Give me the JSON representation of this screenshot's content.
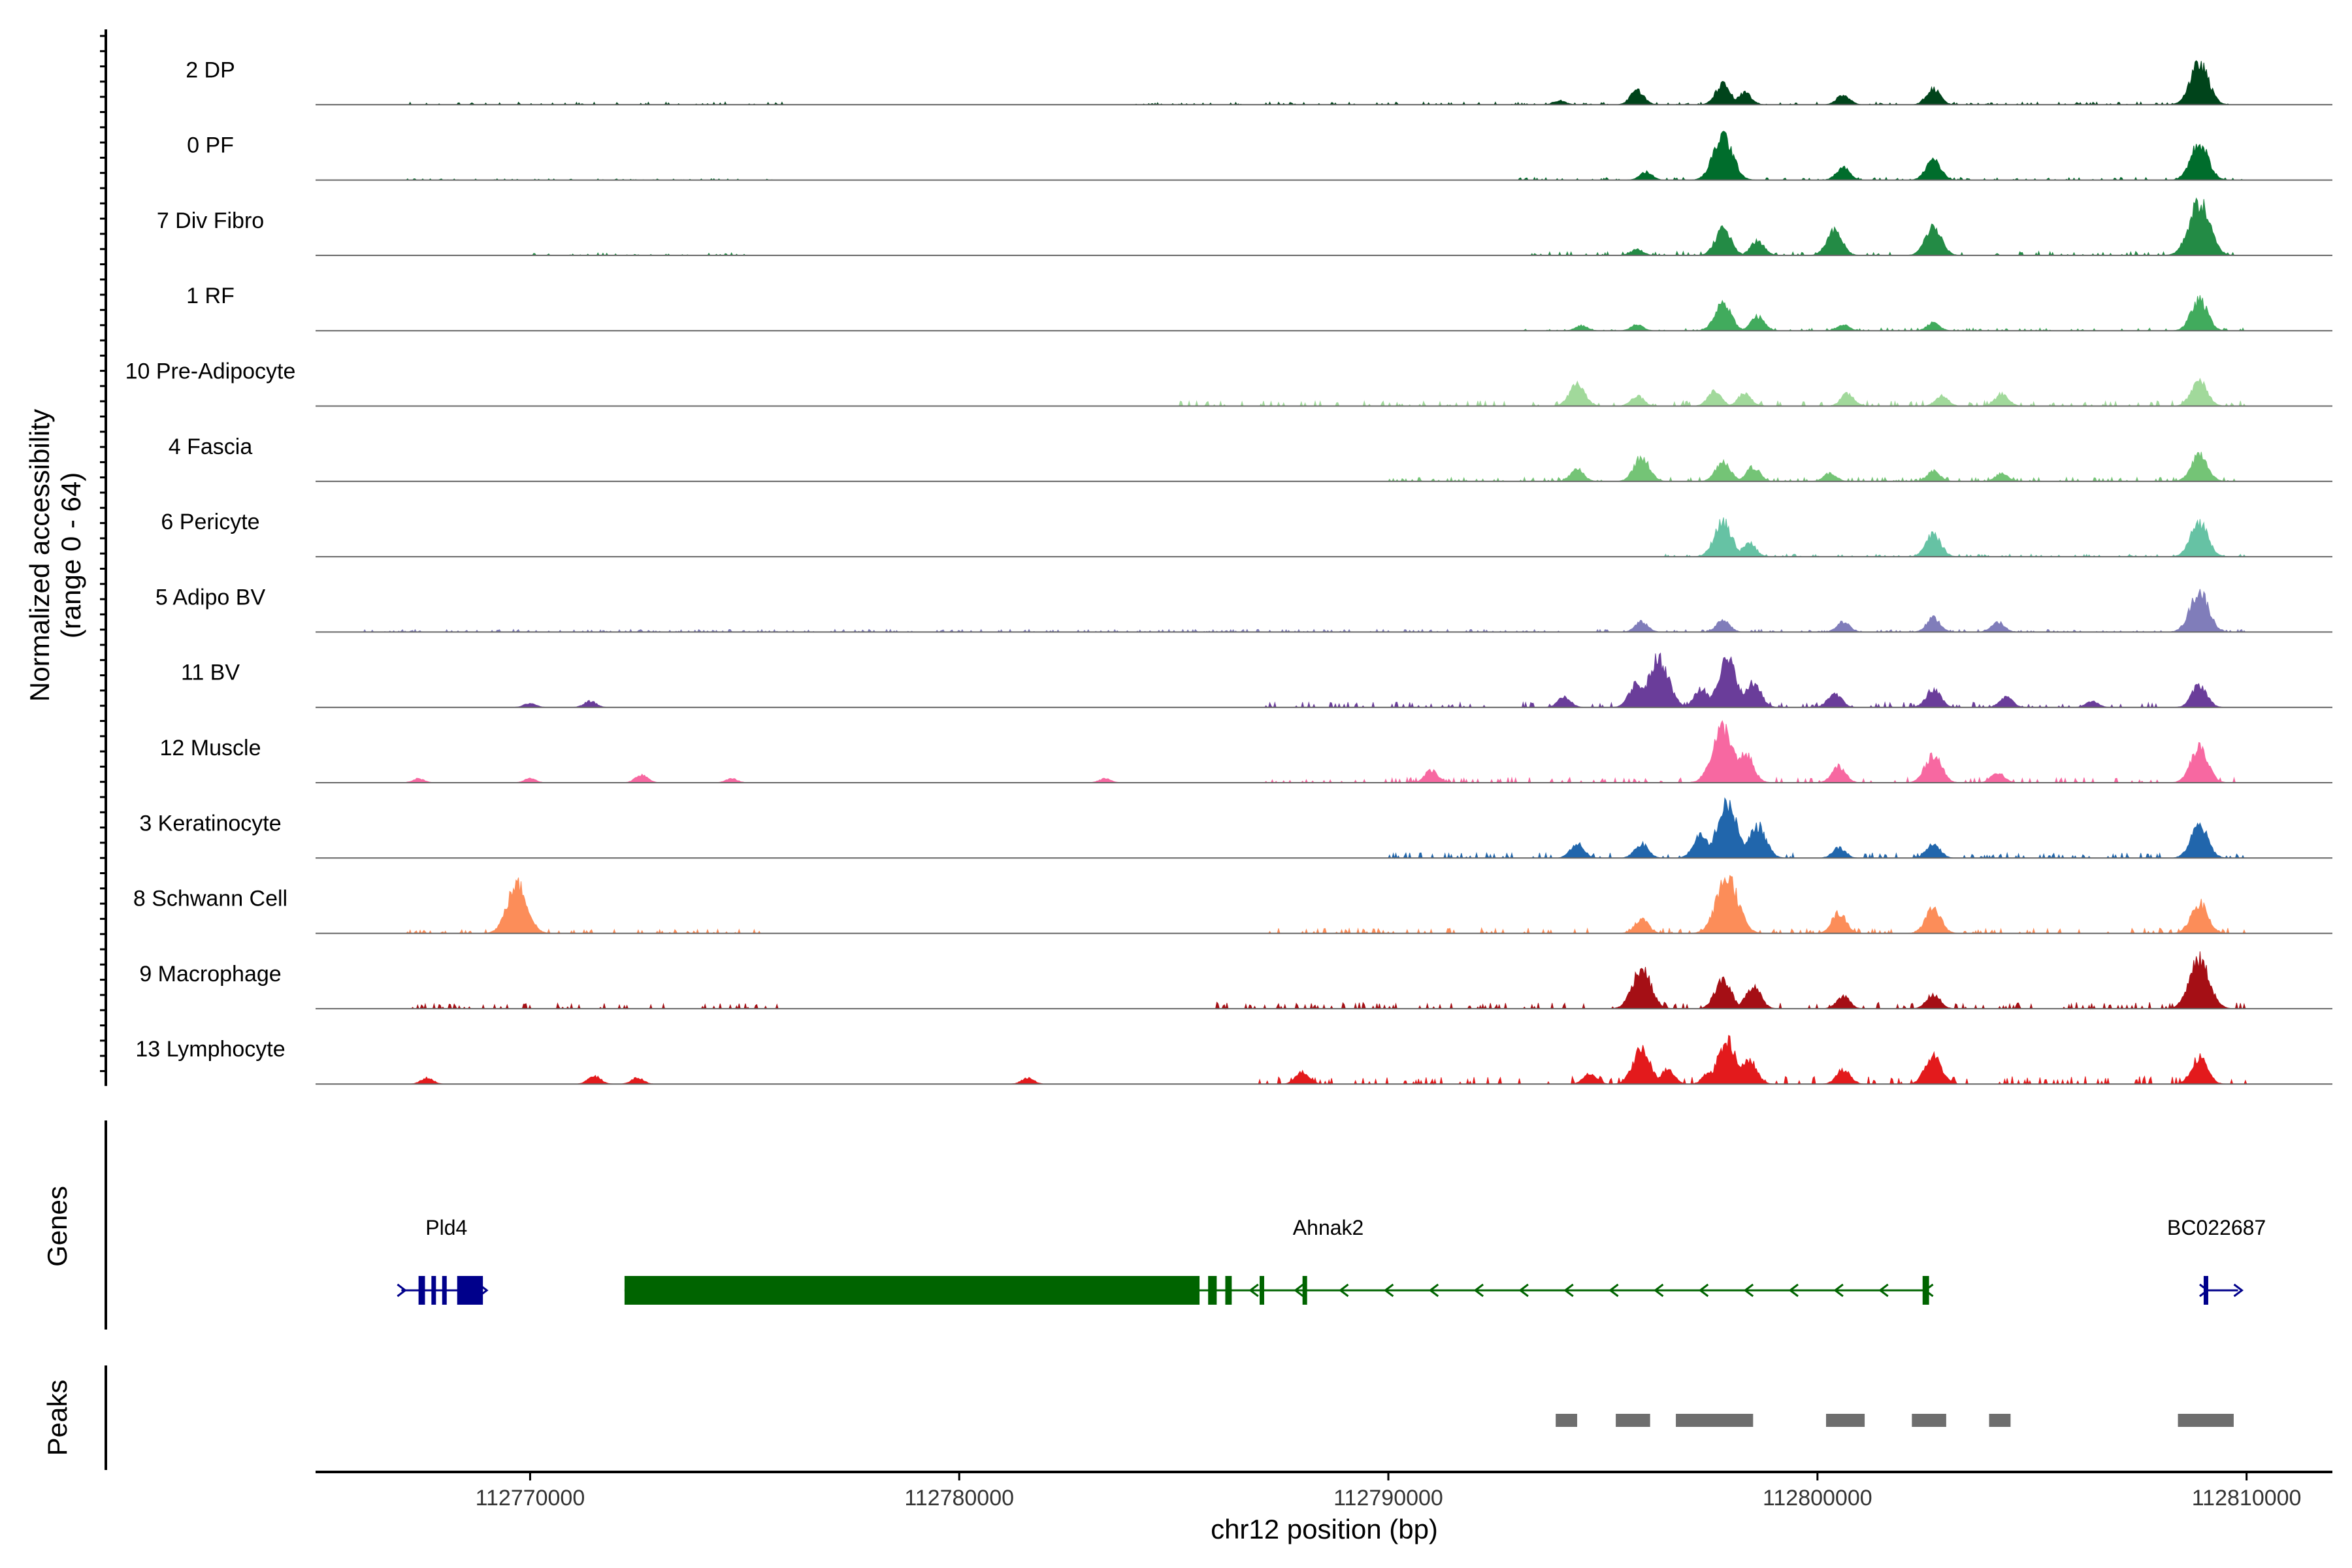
{
  "chart_data": {
    "type": "area",
    "title": "",
    "ylabel": [
      "Normalized accessibility",
      "(range 0 - 64)"
    ],
    "ylim": [
      0,
      64
    ],
    "xlabel": "chr12 position (bp)",
    "xlim": [
      112765000,
      112812000
    ],
    "x_ticks": [
      112770000,
      112780000,
      112790000,
      112800000,
      112810000
    ],
    "x_tick_labels": [
      "112770000",
      "112780000",
      "112790000",
      "112800000",
      "112810000"
    ],
    "panel_labels": {
      "genes": "Genes",
      "peaks": "Peaks"
    },
    "tracks": [
      {
        "name": "2 DP",
        "color": "#00441b",
        "peaks": [
          [
            112794000,
            4
          ],
          [
            112795800,
            14
          ],
          [
            112797800,
            20
          ],
          [
            112798300,
            12
          ],
          [
            112800600,
            10
          ],
          [
            112802700,
            16
          ],
          [
            112808900,
            40
          ]
        ],
        "noise": [
          [
            112767000,
            112776000,
            2
          ],
          [
            112784000,
            112810000,
            2
          ]
        ]
      },
      {
        "name": "0 PF",
        "color": "#006d2c",
        "peaks": [
          [
            112796000,
            8
          ],
          [
            112797800,
            44
          ],
          [
            112800600,
            12
          ],
          [
            112802700,
            20
          ],
          [
            112808900,
            36
          ]
        ],
        "noise": [
          [
            112767000,
            112776000,
            1
          ],
          [
            112793000,
            112810000,
            2
          ]
        ]
      },
      {
        "name": "7 Div Fibro",
        "color": "#238b45",
        "peaks": [
          [
            112795800,
            6
          ],
          [
            112797800,
            26
          ],
          [
            112798600,
            14
          ],
          [
            112800400,
            24
          ],
          [
            112802700,
            28
          ],
          [
            112808900,
            52
          ]
        ],
        "noise": [
          [
            112770000,
            112775000,
            2
          ],
          [
            112793000,
            112810000,
            3
          ]
        ]
      },
      {
        "name": "1 RF",
        "color": "#41ab5d",
        "peaks": [
          [
            112794500,
            5
          ],
          [
            112795800,
            6
          ],
          [
            112797800,
            28
          ],
          [
            112798600,
            14
          ],
          [
            112800600,
            6
          ],
          [
            112802700,
            8
          ],
          [
            112808900,
            30
          ]
        ],
        "noise": [
          [
            112793000,
            112810000,
            2
          ]
        ]
      },
      {
        "name": "10 Pre-Adipocyte",
        "color": "#a1d99b",
        "peaks": [
          [
            112794400,
            22
          ],
          [
            112795800,
            10
          ],
          [
            112797600,
            14
          ],
          [
            112798300,
            12
          ],
          [
            112800700,
            12
          ],
          [
            112802900,
            10
          ],
          [
            112804300,
            12
          ],
          [
            112808900,
            26
          ]
        ],
        "noise": [
          [
            112785000,
            112810000,
            4
          ]
        ]
      },
      {
        "name": "4 Fascia",
        "color": "#74c476",
        "peaks": [
          [
            112794400,
            12
          ],
          [
            112795900,
            24
          ],
          [
            112797800,
            20
          ],
          [
            112798500,
            14
          ],
          [
            112800300,
            8
          ],
          [
            112802700,
            10
          ],
          [
            112804300,
            8
          ],
          [
            112808900,
            28
          ]
        ],
        "noise": [
          [
            112790000,
            112810000,
            3
          ]
        ]
      },
      {
        "name": "6 Pericyte",
        "color": "#66c2a4",
        "peaks": [
          [
            112797800,
            34
          ],
          [
            112798400,
            14
          ],
          [
            112802700,
            22
          ],
          [
            112808900,
            34
          ]
        ],
        "noise": [
          [
            112796000,
            112810000,
            2
          ]
        ]
      },
      {
        "name": "5 Adipo BV",
        "color": "#807dba",
        "peaks": [
          [
            112795900,
            10
          ],
          [
            112797800,
            12
          ],
          [
            112800600,
            10
          ],
          [
            112802700,
            14
          ],
          [
            112804200,
            10
          ],
          [
            112808900,
            40
          ]
        ],
        "noise": [
          [
            112766000,
            112810000,
            2
          ]
        ]
      },
      {
        "name": "11 BV",
        "color": "#6a3d9a",
        "peaks": [
          [
            112770000,
            4
          ],
          [
            112771400,
            6
          ],
          [
            112794100,
            10
          ],
          [
            112795800,
            24
          ],
          [
            112796300,
            48
          ],
          [
            112797300,
            18
          ],
          [
            112797900,
            46
          ],
          [
            112798500,
            24
          ],
          [
            112800400,
            14
          ],
          [
            112802700,
            18
          ],
          [
            112804400,
            10
          ],
          [
            112806400,
            6
          ],
          [
            112808900,
            22
          ]
        ],
        "noise": [
          [
            112787000,
            112808000,
            4
          ]
        ]
      },
      {
        "name": "12 Muscle",
        "color": "#f768a1",
        "peaks": [
          [
            112767400,
            4
          ],
          [
            112770000,
            4
          ],
          [
            112772600,
            8
          ],
          [
            112774700,
            4
          ],
          [
            112783400,
            4
          ],
          [
            112791000,
            12
          ],
          [
            112797800,
            54
          ],
          [
            112798300,
            30
          ],
          [
            112800500,
            16
          ],
          [
            112802700,
            28
          ],
          [
            112804200,
            10
          ],
          [
            112808900,
            34
          ]
        ],
        "noise": [
          [
            112787000,
            112810000,
            4
          ]
        ]
      },
      {
        "name": "3 Keratinocyte",
        "color": "#2166ac",
        "peaks": [
          [
            112794400,
            14
          ],
          [
            112795900,
            14
          ],
          [
            112797300,
            24
          ],
          [
            112797900,
            52
          ],
          [
            112798600,
            32
          ],
          [
            112800500,
            10
          ],
          [
            112802700,
            14
          ],
          [
            112808900,
            32
          ]
        ],
        "noise": [
          [
            112790000,
            112810000,
            4
          ]
        ]
      },
      {
        "name": "8 Schwann Cell",
        "color": "#fc8d59",
        "peaks": [
          [
            112769700,
            48
          ],
          [
            112795900,
            14
          ],
          [
            112797900,
            56
          ],
          [
            112800500,
            20
          ],
          [
            112802700,
            24
          ],
          [
            112808900,
            30
          ]
        ],
        "noise": [
          [
            112767000,
            112776000,
            3
          ],
          [
            112787000,
            112810000,
            4
          ]
        ]
      },
      {
        "name": "9 Macrophage",
        "color": "#a50f15",
        "peaks": [
          [
            112795900,
            40
          ],
          [
            112797800,
            28
          ],
          [
            112798500,
            22
          ],
          [
            112800600,
            12
          ],
          [
            112802700,
            14
          ],
          [
            112808900,
            48
          ]
        ],
        "noise": [
          [
            112767000,
            112776000,
            4
          ],
          [
            112786000,
            112810000,
            5
          ]
        ]
      },
      {
        "name": "13 Lymphocyte",
        "color": "#e31a1c",
        "peaks": [
          [
            112767600,
            6
          ],
          [
            112771500,
            8
          ],
          [
            112772500,
            6
          ],
          [
            112781600,
            6
          ],
          [
            112788000,
            12
          ],
          [
            112794700,
            10
          ],
          [
            112795900,
            34
          ],
          [
            112796500,
            14
          ],
          [
            112797500,
            12
          ],
          [
            112797900,
            42
          ],
          [
            112798400,
            24
          ],
          [
            112800600,
            14
          ],
          [
            112802700,
            28
          ],
          [
            112808900,
            26
          ]
        ],
        "noise": [
          [
            112787000,
            112810000,
            6
          ]
        ]
      }
    ],
    "genes": [
      {
        "name": "Pld4",
        "color": "#00008b",
        "start": 112767000,
        "end": 112768900,
        "strand": "+",
        "exons": [
          [
            112767400,
            112767550
          ],
          [
            112767700,
            112767800
          ],
          [
            112767950,
            112768050
          ],
          [
            112768300,
            112768900
          ]
        ]
      },
      {
        "name": "Ahnak2",
        "color": "#006400",
        "start": 112772200,
        "end": 112802600,
        "strand": "-",
        "exons": [
          [
            112772200,
            112785600
          ],
          [
            112785800,
            112786000
          ],
          [
            112786200,
            112786350
          ],
          [
            112787000,
            112787100
          ],
          [
            112788000,
            112788080
          ],
          [
            112802450,
            112802600
          ]
        ]
      },
      {
        "name": "BC022687",
        "color": "#00008b",
        "start": 112809000,
        "end": 112809800,
        "strand": "+",
        "exons": [
          [
            112809000,
            112809050
          ]
        ]
      }
    ],
    "peak_regions": [
      [
        112793900,
        112794400
      ],
      [
        112795300,
        112796100
      ],
      [
        112796700,
        112798500
      ],
      [
        112800200,
        112801100
      ],
      [
        112802200,
        112803000
      ],
      [
        112804000,
        112804500
      ],
      [
        112808400,
        112809700
      ]
    ],
    "grid": false
  }
}
